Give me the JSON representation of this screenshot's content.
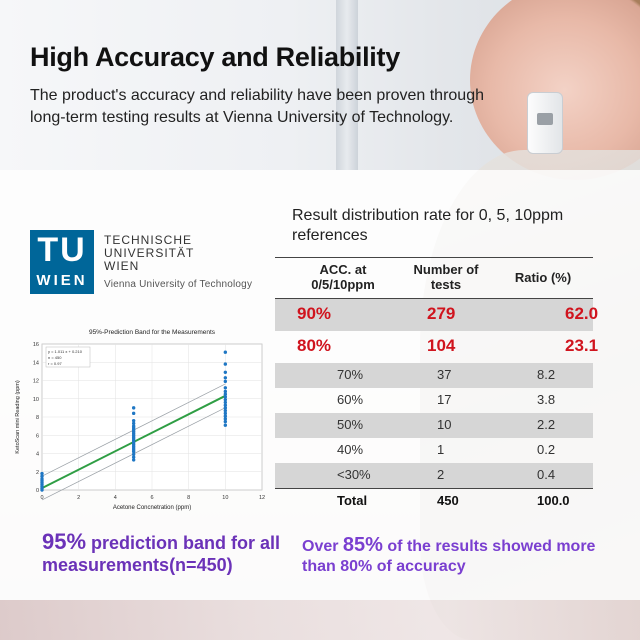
{
  "header": {
    "title": "High Accuracy and Reliability",
    "subtitle": "The product's accuracy and reliability have been proven through long-term testing results at Vienna University of Technology."
  },
  "logo": {
    "mark_top": "TU",
    "mark_bottom": "WIEN",
    "line1": "TECHNISCHE",
    "line2": "UNIVERSITÄT",
    "line3": "WIEN",
    "english": "Vienna University of Technology",
    "color": "#006699"
  },
  "chart_data": {
    "type": "scatter",
    "title": "95%-Prediction Band for the Measurements",
    "xlabel": "Acetone Concnetration (ppm)",
    "ylabel": "KetoScan mini Reading (ppm)",
    "xlim": [
      0,
      12
    ],
    "ylim": [
      0,
      16
    ],
    "xticks": [
      0,
      2,
      4,
      6,
      8,
      10,
      12
    ],
    "yticks": [
      0,
      2,
      4,
      6,
      8,
      10,
      12,
      14,
      16
    ],
    "grid": true,
    "stats_box": [
      "y = 1.011 x + 0.210",
      "n = 450",
      "r = 0.97"
    ],
    "fit_line": {
      "slope": 1.011,
      "intercept": 0.21
    },
    "band_halfwidth": 1.3,
    "series": [
      {
        "x": 0,
        "y": [
          0,
          0.2,
          0.4,
          0.6,
          0.8,
          1.0,
          1.2,
          1.5,
          1.8
        ]
      },
      {
        "x": 5,
        "y": [
          3.3,
          3.6,
          3.9,
          4.2,
          4.4,
          4.6,
          4.8,
          5.0,
          5.2,
          5.4,
          5.6,
          5.8,
          6.0,
          6.2,
          6.4,
          6.6,
          6.8,
          7.0,
          7.3,
          7.6,
          8.4,
          9.0
        ]
      },
      {
        "x": 10,
        "y": [
          7.1,
          7.5,
          7.8,
          8.1,
          8.4,
          8.7,
          9.0,
          9.3,
          9.6,
          9.9,
          10.2,
          10.5,
          10.8,
          11.2,
          11.9,
          12.3,
          12.9,
          13.8,
          15.1
        ]
      }
    ],
    "point_color": "#1f77c4",
    "fit_color": "#2f9e44",
    "band_color": "#9aa0a6"
  },
  "table": {
    "title": "Result distribution rate for 0, 5, 10ppm references",
    "headers": [
      "ACC. at 0/5/10ppm",
      "Number of tests",
      "Ratio (%)"
    ],
    "rows": [
      {
        "acc": "90%",
        "tests": "279",
        "ratio": "62.0"
      },
      {
        "acc": "80%",
        "tests": "104",
        "ratio": "23.1"
      },
      {
        "acc": "70%",
        "tests": "37",
        "ratio": "8.2"
      },
      {
        "acc": "60%",
        "tests": "17",
        "ratio": "3.8"
      },
      {
        "acc": "50%",
        "tests": "10",
        "ratio": "2.2"
      },
      {
        "acc": "40%",
        "tests": "1",
        "ratio": "0.2"
      },
      {
        "acc": "<30%",
        "tests": "2",
        "ratio": "0.4"
      },
      {
        "acc": "Total",
        "tests": "450",
        "ratio": "100.0"
      }
    ],
    "highlight_color": "#d0141e"
  },
  "captions": {
    "left_big": "95%",
    "left_rest": " prediction band for all measurements(n=450)",
    "right_pre": "Over ",
    "right_big": "85%",
    "right_rest": " of the results showed more than 80% of accuracy",
    "color": "#6b32b8"
  }
}
